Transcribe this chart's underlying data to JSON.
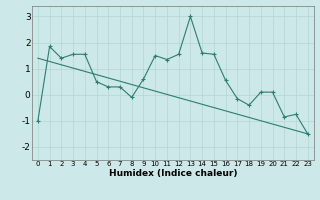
{
  "xlabel": "Humidex (Indice chaleur)",
  "x": [
    0,
    1,
    2,
    3,
    4,
    5,
    6,
    7,
    8,
    9,
    10,
    11,
    12,
    13,
    14,
    15,
    16,
    17,
    18,
    19,
    20,
    21,
    22,
    23
  ],
  "y": [
    -1.0,
    1.85,
    1.4,
    1.55,
    1.55,
    0.5,
    0.3,
    0.3,
    -0.1,
    0.6,
    1.5,
    1.35,
    1.55,
    3.0,
    1.6,
    1.55,
    0.55,
    -0.15,
    -0.4,
    0.1,
    0.1,
    -0.85,
    -0.75,
    -1.5
  ],
  "trend_x": [
    0,
    23
  ],
  "trend_y": [
    1.4,
    -1.5
  ],
  "line_color": "#2d7d6e",
  "bg_color": "#cce8e8",
  "grid_color": "#b8d8d8",
  "ylim": [
    -2.5,
    3.4
  ],
  "xlim": [
    -0.5,
    23.5
  ],
  "yticks": [
    -2,
    -1,
    0,
    1,
    2,
    3
  ],
  "xticks": [
    0,
    1,
    2,
    3,
    4,
    5,
    6,
    7,
    8,
    9,
    10,
    11,
    12,
    13,
    14,
    15,
    16,
    17,
    18,
    19,
    20,
    21,
    22,
    23
  ]
}
